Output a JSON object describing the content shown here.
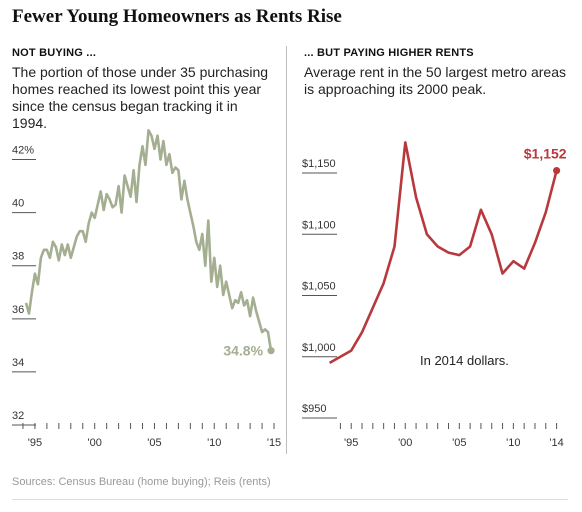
{
  "title": "Fewer Young Homeowners as Rents Rise",
  "source": "Sources: Census Bureau (home buying); Reis (rents)",
  "left": {
    "heading": "NOT BUYING ...",
    "description": "The portion of those under 35 purchasing homes reached its lowest point this year since the census began tracking it in 1994."
  },
  "right": {
    "heading": "... BUT PAYING HIGHER RENTS",
    "description": "Average rent in the 50 largest metro areas is approaching its 2000 peak."
  },
  "chart_data": [
    {
      "type": "line",
      "color": "#a4ae91",
      "ylim": [
        32,
        43
      ],
      "xlim": [
        1993.5,
        2015.5
      ],
      "y_ticks": [
        32,
        34,
        36,
        38,
        40,
        42
      ],
      "y_tick_labels": [
        "32",
        "34",
        "36",
        "38",
        "40",
        "42%"
      ],
      "x_ticks": [
        1995,
        2000,
        2005,
        2010,
        2015
      ],
      "x_tick_labels": [
        "'95",
        "'00",
        "'05",
        "'10",
        "'15"
      ],
      "end_label": "34.8%",
      "x": [
        1994.25,
        1994.5,
        1994.75,
        1995,
        1995.25,
        1995.5,
        1995.75,
        1996,
        1996.25,
        1996.5,
        1996.75,
        1997,
        1997.25,
        1997.5,
        1997.75,
        1998,
        1998.25,
        1998.5,
        1998.75,
        1999,
        1999.25,
        1999.5,
        1999.75,
        2000,
        2000.25,
        2000.5,
        2000.75,
        2001,
        2001.25,
        2001.5,
        2001.75,
        2002,
        2002.25,
        2002.5,
        2002.75,
        2003,
        2003.25,
        2003.5,
        2003.75,
        2004,
        2004.25,
        2004.5,
        2004.75,
        2005,
        2005.25,
        2005.5,
        2005.75,
        2006,
        2006.25,
        2006.5,
        2006.75,
        2007,
        2007.25,
        2007.5,
        2007.75,
        2008,
        2008.25,
        2008.5,
        2008.75,
        2009,
        2009.25,
        2009.5,
        2009.75,
        2010,
        2010.25,
        2010.5,
        2010.75,
        2011,
        2011.25,
        2011.5,
        2011.75,
        2012,
        2012.25,
        2012.5,
        2012.75,
        2013,
        2013.25,
        2013.5,
        2013.75,
        2014,
        2014.25,
        2014.5,
        2014.75
      ],
      "y": [
        36.6,
        36.2,
        37.0,
        37.7,
        37.3,
        38.3,
        38.6,
        38.6,
        38.3,
        38.9,
        38.7,
        38.2,
        38.8,
        38.4,
        38.8,
        38.3,
        38.7,
        39.1,
        39.3,
        39.3,
        38.9,
        39.6,
        40.0,
        39.8,
        40.3,
        40.8,
        40.1,
        40.7,
        40.5,
        40.2,
        40.3,
        41.0,
        40.0,
        41.4,
        41.0,
        40.6,
        41.6,
        40.4,
        41.8,
        42.5,
        41.8,
        43.1,
        42.9,
        42.4,
        42.9,
        42.0,
        42.7,
        41.8,
        42.2,
        41.5,
        41.7,
        41.6,
        40.5,
        41.2,
        40.5,
        40.0,
        39.5,
        38.9,
        38.6,
        39.2,
        38.0,
        39.7,
        37.4,
        38.3,
        37.2,
        38.0,
        36.9,
        37.4,
        36.9,
        36.4,
        36.7,
        36.6,
        37.0,
        36.5,
        36.7,
        36.1,
        36.8,
        36.3,
        35.9,
        35.5,
        35.6,
        35.5,
        34.8
      ]
    },
    {
      "type": "line",
      "color": "#b8393d",
      "ylim": [
        950,
        1190
      ],
      "xlim": [
        1993.5,
        2014.5
      ],
      "y_ticks": [
        950,
        1000,
        1050,
        1100,
        1150
      ],
      "y_tick_labels": [
        "$950",
        "$1,000",
        "$1,050",
        "$1,100",
        "$1,150"
      ],
      "x_ticks": [
        1995,
        2000,
        2005,
        2010,
        2014
      ],
      "x_tick_labels": [
        "'95",
        "'00",
        "'05",
        "'10",
        "'14"
      ],
      "end_label": "$1,152",
      "annotation": "In 2014 dollars.",
      "x": [
        1993,
        1994,
        1995,
        1996,
        1997,
        1998,
        1999,
        2000,
        2001,
        2002,
        2003,
        2004,
        2005,
        2006,
        2007,
        2008,
        2009,
        2010,
        2011,
        2012,
        2013,
        2014
      ],
      "y": [
        995,
        1000,
        1005,
        1020,
        1040,
        1060,
        1090,
        1175,
        1130,
        1100,
        1090,
        1085,
        1083,
        1090,
        1120,
        1100,
        1068,
        1078,
        1072,
        1093,
        1118,
        1152
      ]
    }
  ]
}
